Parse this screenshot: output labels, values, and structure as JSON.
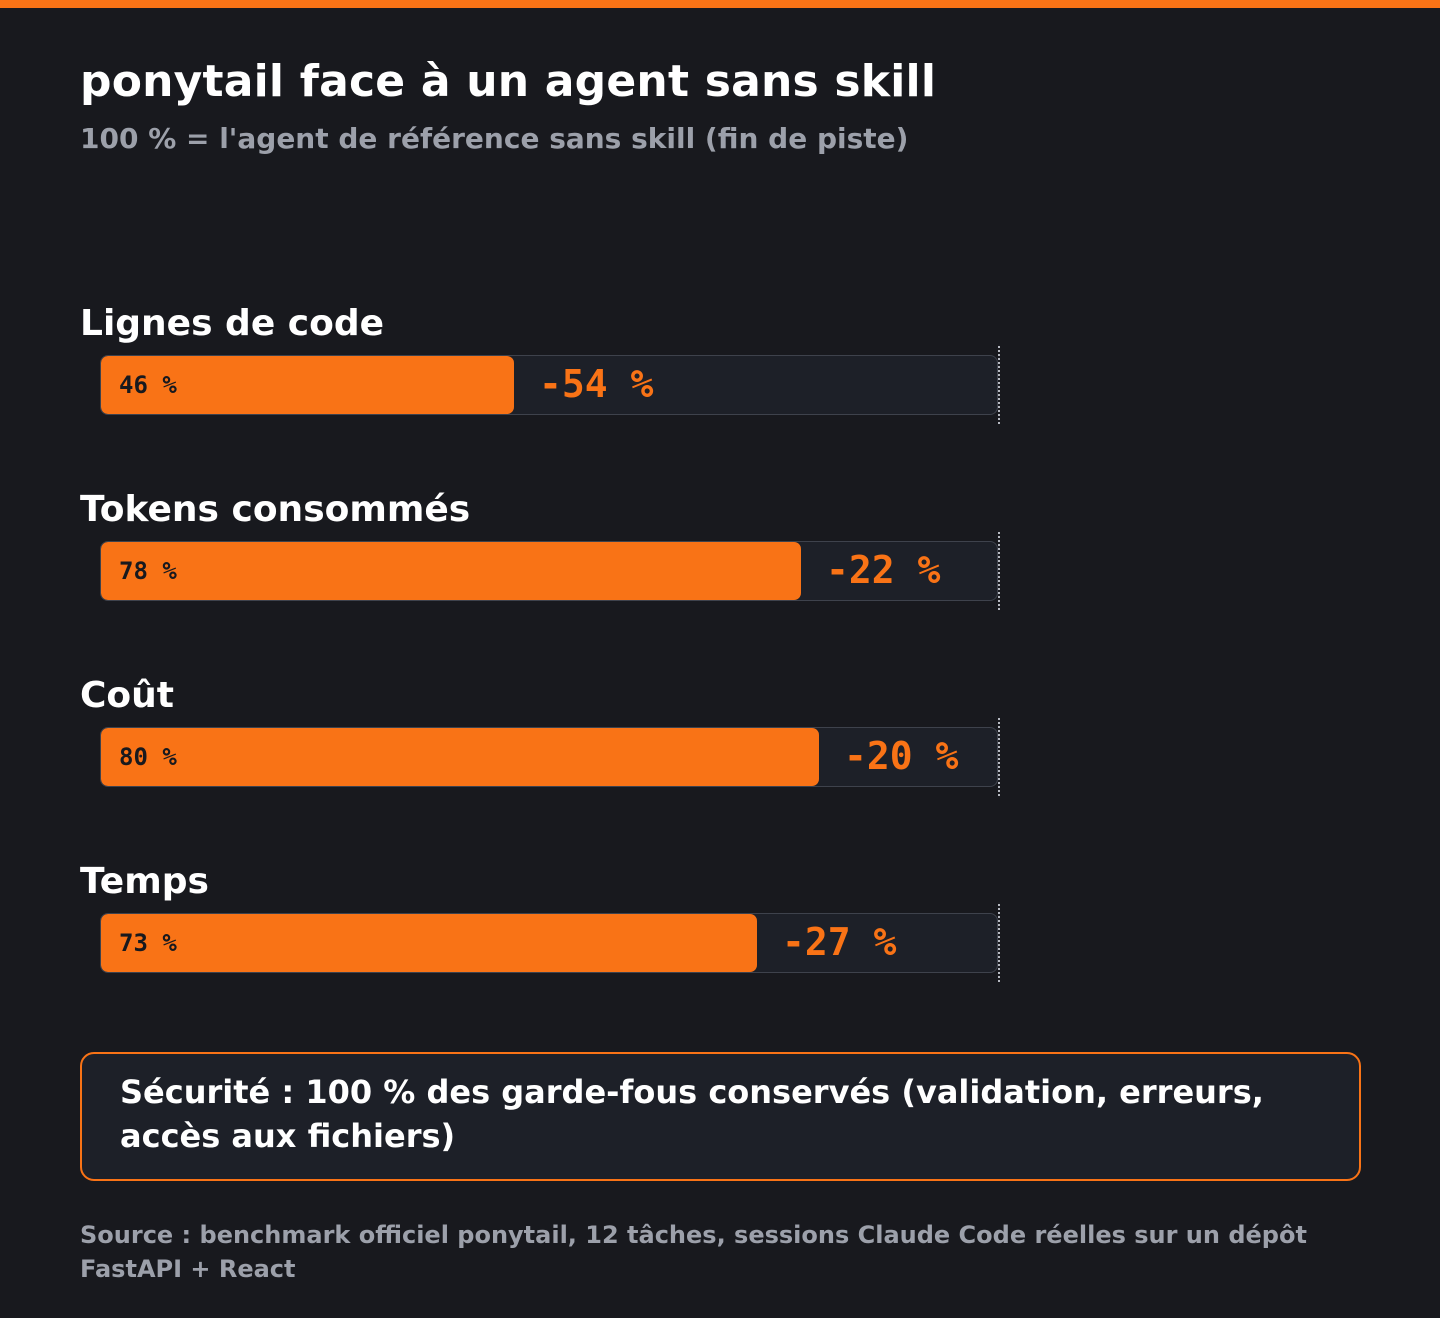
{
  "title": "ponytail face à un agent sans skill",
  "subtitle": "100 % = l'agent de référence sans skill (fin de piste)",
  "colors": {
    "accent": "#f97316",
    "background": "#18191e",
    "track": "#1d2028",
    "muted_text": "#9ca0aa"
  },
  "chart_data": {
    "type": "bar",
    "orientation": "horizontal",
    "title": "ponytail face à un agent sans skill",
    "subtitle": "100 % = l'agent de référence sans skill (fin de piste)",
    "reference": 100,
    "xlim": [
      0,
      100
    ],
    "categories": [
      "Lignes de code",
      "Tokens consommés",
      "Coût",
      "Temps"
    ],
    "values": [
      46,
      78,
      80,
      73
    ],
    "value_labels": [
      "46 %",
      "78 %",
      "80 %",
      "73 %"
    ],
    "delta_labels": [
      "-54 %",
      "-22 %",
      "-20 %",
      "-27 %"
    ]
  },
  "callout": {
    "text": "Sécurité : 100 % des garde-fous conservés (validation, erreurs, accès aux fichiers)"
  },
  "source": "Source : benchmark officiel ponytail, 12 tâches, sessions Claude Code réelles sur un dépôt FastAPI + React"
}
